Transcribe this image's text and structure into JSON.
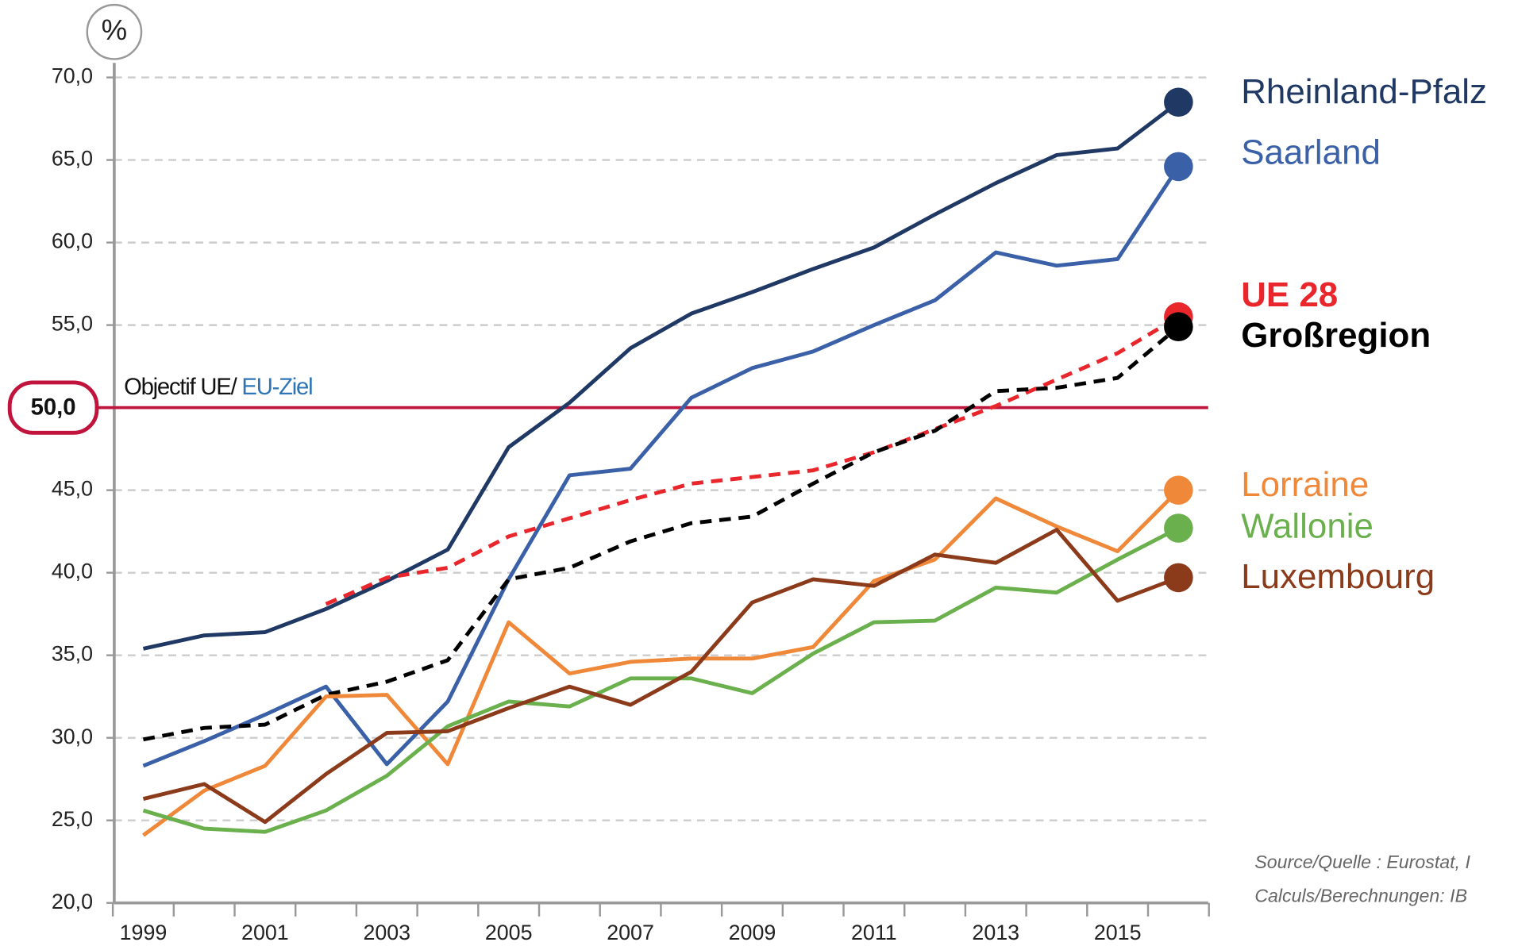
{
  "chart_data": {
    "type": "line",
    "unit": "%",
    "categories": [
      "1999",
      null,
      "2001",
      null,
      "2003",
      null,
      "2005",
      null,
      "2007",
      null,
      "2009",
      null,
      "2011",
      null,
      "2013",
      null,
      "2015",
      null
    ],
    "series": [
      {
        "name": "Rheinland-Pfalz",
        "color": "#1f3864",
        "dashed": false,
        "bold": false,
        "values": [
          35.4,
          36.2,
          36.4,
          37.8,
          39.5,
          41.4,
          47.6,
          50.3,
          53.6,
          55.7,
          57.0,
          58.4,
          59.7,
          61.7,
          63.6,
          65.3,
          65.7,
          68.5
        ]
      },
      {
        "name": "Saarland",
        "color": "#3a60a8",
        "dashed": false,
        "bold": false,
        "values": [
          28.3,
          29.8,
          31.4,
          33.1,
          28.4,
          32.2,
          39.6,
          45.9,
          46.3,
          50.6,
          52.4,
          53.4,
          55.0,
          56.5,
          59.4,
          58.6,
          59.0,
          64.6
        ]
      },
      {
        "name": "UE 28",
        "color": "#e8262b",
        "dashed": true,
        "bold": true,
        "values": [
          null,
          null,
          null,
          38.1,
          39.7,
          40.3,
          42.2,
          43.3,
          44.4,
          45.4,
          45.8,
          46.2,
          47.3,
          48.7,
          50.1,
          51.7,
          53.3,
          55.5
        ]
      },
      {
        "name": "Großregion",
        "color": "#000000",
        "dashed": true,
        "bold": true,
        "values": [
          29.9,
          30.6,
          30.8,
          32.6,
          33.4,
          34.7,
          39.6,
          40.3,
          41.9,
          43.0,
          43.4,
          45.4,
          47.3,
          48.6,
          51.0,
          51.2,
          51.8,
          54.9
        ]
      },
      {
        "name": "Lorraine",
        "color": "#f0883a",
        "dashed": false,
        "bold": false,
        "values": [
          24.1,
          26.8,
          28.3,
          32.5,
          32.6,
          28.4,
          37.0,
          33.9,
          34.6,
          34.8,
          34.8,
          35.5,
          39.5,
          40.8,
          44.5,
          42.8,
          41.3,
          45.0
        ]
      },
      {
        "name": "Wallonie",
        "color": "#6ab04c",
        "dashed": false,
        "bold": false,
        "values": [
          25.6,
          24.5,
          24.3,
          25.6,
          27.7,
          30.7,
          32.2,
          31.9,
          33.6,
          33.6,
          32.7,
          35.1,
          37.0,
          37.1,
          39.1,
          38.8,
          40.8,
          42.7
        ]
      },
      {
        "name": "Luxembourg",
        "color": "#8b3a1a",
        "dashed": false,
        "bold": false,
        "values": [
          26.3,
          27.2,
          24.9,
          27.8,
          30.3,
          30.4,
          31.8,
          33.1,
          32.0,
          34.0,
          38.2,
          39.6,
          39.2,
          41.1,
          40.6,
          42.6,
          38.3,
          39.7
        ]
      }
    ],
    "ylim": [
      20,
      70
    ],
    "yticks": [
      {
        "value": 20,
        "label": "20,0"
      },
      {
        "value": 25,
        "label": "25,0"
      },
      {
        "value": 30,
        "label": "30,0"
      },
      {
        "value": 35,
        "label": "35,0"
      },
      {
        "value": 40,
        "label": "40,0"
      },
      {
        "value": 45,
        "label": "45,0"
      },
      {
        "value": 50,
        "label": "50,0"
      },
      {
        "value": 55,
        "label": "55,0"
      },
      {
        "value": 60,
        "label": "60,0"
      },
      {
        "value": 65,
        "label": "65,0"
      },
      {
        "value": 70,
        "label": "70,0"
      }
    ],
    "grid": true,
    "target": {
      "value": 50,
      "label": "50,0",
      "text": "Objectif UE/ ",
      "text2": "EU-Ziel",
      "color": "#c0143c"
    },
    "source": [
      "Source/Quelle : Eurostat, I",
      "Calculs/Berechnungen:  IB"
    ]
  }
}
